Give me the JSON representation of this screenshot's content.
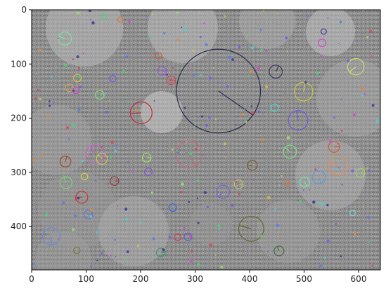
{
  "chart_data": {
    "type": "scatter",
    "title": "",
    "xlabel": "",
    "ylabel": "",
    "xlim": [
      0,
      640
    ],
    "ylim": [
      480,
      0
    ],
    "x_ticks": [
      0,
      100,
      200,
      300,
      400,
      500,
      600
    ],
    "y_ticks": [
      0,
      100,
      200,
      300,
      400
    ],
    "x_tick_labels": [
      "0",
      "100",
      "200",
      "300",
      "400",
      "500",
      "600"
    ],
    "y_tick_labels": [
      "0",
      "100",
      "200",
      "300",
      "400"
    ],
    "grid": false,
    "legend": "none",
    "background": "grayscale microscopy image",
    "keypoints": [
      {
        "x": 343,
        "y": 150,
        "r": 77,
        "angle": 35,
        "color": "#2a2a48"
      },
      {
        "x": 201,
        "y": 190,
        "r": 20,
        "angle": 175,
        "color": "#c0303a"
      },
      {
        "x": 289,
        "y": 267,
        "r": 24,
        "angle": 60,
        "color": "#c06a7a"
      },
      {
        "x": 403,
        "y": 404,
        "r": 23,
        "angle": 195,
        "color": "#6a6a2a"
      },
      {
        "x": 499,
        "y": 151,
        "r": 17,
        "angle": 280,
        "color": "#c8c63a"
      },
      {
        "x": 489,
        "y": 204,
        "r": 18,
        "angle": 260,
        "color": "#6a5ae0"
      },
      {
        "x": 563,
        "y": 287,
        "r": 18,
        "angle": 200,
        "color": "#e88a5a"
      },
      {
        "x": 595,
        "y": 105,
        "r": 15,
        "angle": 140,
        "color": "#c8e06a"
      },
      {
        "x": 474,
        "y": 262,
        "r": 12,
        "angle": 220,
        "color": "#7ae07a"
      },
      {
        "x": 527,
        "y": 309,
        "r": 12,
        "angle": 70,
        "color": "#5a9ae0"
      },
      {
        "x": 448,
        "y": 114,
        "r": 12,
        "angle": 300,
        "color": "#3a3a5a"
      },
      {
        "x": 116,
        "y": 266,
        "r": 17,
        "angle": 240,
        "color": "#d060d0"
      },
      {
        "x": 36,
        "y": 418,
        "r": 16,
        "angle": 90,
        "color": "#6a8ae0"
      },
      {
        "x": 61,
        "y": 53,
        "r": 12,
        "angle": 200,
        "color": "#7ae0a0"
      },
      {
        "x": 92,
        "y": 346,
        "r": 11,
        "angle": 180,
        "color": "#c03a3a"
      },
      {
        "x": 63,
        "y": 319,
        "r": 11,
        "angle": 250,
        "color": "#7ad07a"
      },
      {
        "x": 62,
        "y": 280,
        "r": 10,
        "angle": 285,
        "color": "#a04a2a"
      },
      {
        "x": 129,
        "y": 275,
        "r": 10,
        "angle": 230,
        "color": "#c8c84a"
      },
      {
        "x": 351,
        "y": 336,
        "r": 12,
        "angle": 130,
        "color": "#7a60e0"
      },
      {
        "x": 405,
        "y": 287,
        "r": 9,
        "angle": 170,
        "color": "#7a5a3a"
      },
      {
        "x": 454,
        "y": 445,
        "r": 9,
        "angle": 250,
        "color": "#4a6a4a"
      },
      {
        "x": 555,
        "y": 253,
        "r": 10,
        "angle": 0,
        "color": "#d05a3a"
      },
      {
        "x": 501,
        "y": 318,
        "r": 9,
        "angle": 60,
        "color": "#7ae0a0"
      },
      {
        "x": 603,
        "y": 301,
        "r": 8,
        "angle": 0,
        "color": "#a0d06a"
      },
      {
        "x": 104,
        "y": 378,
        "r": 8,
        "angle": 0,
        "color": "#5a7ae0"
      },
      {
        "x": 239,
        "y": 113,
        "r": 8,
        "angle": 0,
        "color": "#9a5ae0"
      },
      {
        "x": 211,
        "y": 273,
        "r": 8,
        "angle": 0,
        "color": "#a0e06a"
      },
      {
        "x": 152,
        "y": 316,
        "r": 8,
        "angle": 0,
        "color": "#9a3a3a"
      },
      {
        "x": 125,
        "y": 157,
        "r": 8,
        "angle": 0,
        "color": "#7ae07a"
      },
      {
        "x": 380,
        "y": 322,
        "r": 8,
        "angle": 0,
        "color": "#c0c06a"
      },
      {
        "x": 237,
        "y": 448,
        "r": 8,
        "angle": 0,
        "color": "#3a9a6a"
      },
      {
        "x": 287,
        "y": 419,
        "r": 7,
        "angle": 0,
        "color": "#5a5ae0"
      },
      {
        "x": 84,
        "y": 126,
        "r": 7,
        "angle": 0,
        "color": "#d0c04a"
      },
      {
        "x": 69,
        "y": 144,
        "r": 7,
        "angle": 0,
        "color": "#d0a04a"
      },
      {
        "x": 81,
        "y": 149,
        "r": 6,
        "angle": 0,
        "color": "#d04ad0"
      },
      {
        "x": 446,
        "y": 181,
        "r": 7,
        "angle": 0,
        "color": "#4ad0d0"
      },
      {
        "x": 259,
        "y": 365,
        "r": 7,
        "angle": 0,
        "color": "#3a6ae0"
      },
      {
        "x": 233,
        "y": 85,
        "r": 6,
        "angle": 0,
        "color": "#d05a3a"
      },
      {
        "x": 149,
        "y": 127,
        "r": 6,
        "angle": 0,
        "color": "#7a5ae0"
      },
      {
        "x": 163,
        "y": 18,
        "r": 5,
        "angle": 0,
        "color": "#d07a3a"
      },
      {
        "x": 536,
        "y": 40,
        "r": 5,
        "angle": 0,
        "color": "#3a3a9a"
      },
      {
        "x": 268,
        "y": 420,
        "r": 6,
        "angle": 0,
        "color": "#d03a5a"
      },
      {
        "x": 97,
        "y": 308,
        "r": 6,
        "angle": 0,
        "color": "#d0d04a"
      },
      {
        "x": 83,
        "y": 444,
        "r": 6,
        "angle": 0,
        "color": "#7a7a3a"
      },
      {
        "x": 533,
        "y": 61,
        "r": 7,
        "angle": 0,
        "color": "#d04ad0"
      },
      {
        "x": 214,
        "y": 299,
        "r": 7,
        "angle": 0,
        "color": "#7a5ad0"
      },
      {
        "x": 256,
        "y": 130,
        "r": 8,
        "angle": 0,
        "color": "#d04a5a"
      },
      {
        "x": 132,
        "y": 12,
        "r": 5,
        "angle": 0,
        "color": "#4ad07a"
      },
      {
        "x": 589,
        "y": 375,
        "r": 5,
        "angle": 0,
        "color": "#7ad0d0"
      },
      {
        "x": 469,
        "y": 320,
        "r": 5,
        "angle": 0,
        "color": "#d07a3a"
      }
    ]
  }
}
